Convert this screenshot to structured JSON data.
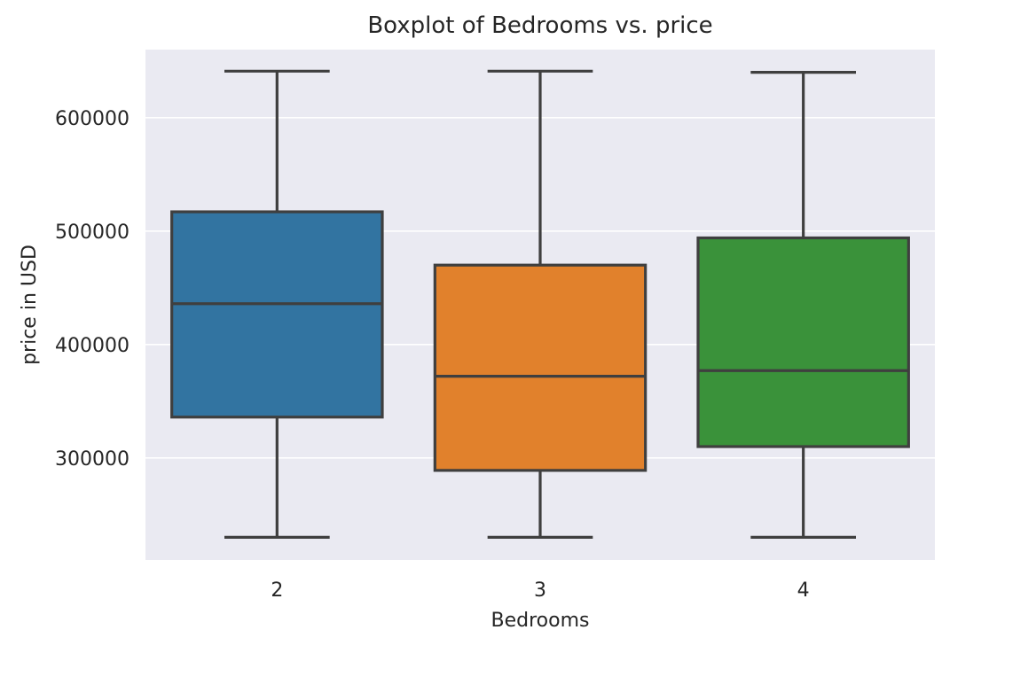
{
  "chart_data": {
    "type": "boxplot",
    "title": "Boxplot of Bedrooms vs. price",
    "xlabel": "Bedrooms",
    "ylabel": "price in USD",
    "ylim": [
      210000,
      660000
    ],
    "yticks": [
      300000,
      400000,
      500000,
      600000
    ],
    "ytick_labels": [
      "300000",
      "400000",
      "500000",
      "600000"
    ],
    "grid": true,
    "categories": [
      "2",
      "3",
      "4"
    ],
    "boxes": [
      {
        "category": "2",
        "whisker_low": 230000,
        "q1": 336000,
        "median": 436000,
        "q3": 517000,
        "whisker_high": 641000,
        "color": "#3274a1"
      },
      {
        "category": "3",
        "whisker_low": 230000,
        "q1": 289000,
        "median": 372000,
        "q3": 470000,
        "whisker_high": 641000,
        "color": "#e1812c"
      },
      {
        "category": "4",
        "whisker_low": 230000,
        "q1": 310000,
        "median": 377000,
        "q3": 494000,
        "whisker_high": 640000,
        "color": "#3a923a"
      }
    ]
  },
  "colors": {
    "plot_background": "#eaeaf2",
    "grid": "#ffffff",
    "box_edge": "#3f3f3f"
  }
}
